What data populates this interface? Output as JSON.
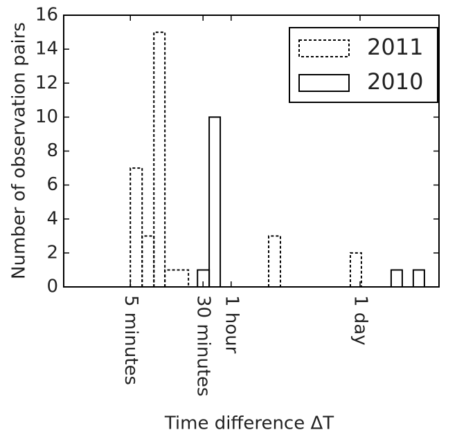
{
  "chart_data": {
    "type": "histogram",
    "x_label": "Time difference ΔT",
    "y_label": "Number of observation pairs",
    "xscale": "log",
    "xlim": [
      58,
      605000
    ],
    "ylim": [
      0,
      16
    ],
    "yticks": [
      0,
      2,
      4,
      6,
      8,
      10,
      12,
      14,
      16
    ],
    "xticks": [
      {
        "value": 300,
        "label": "5 minutes"
      },
      {
        "value": 1800,
        "label": "30 minutes"
      },
      {
        "value": 3600,
        "label": "1 hour"
      },
      {
        "value": 86400,
        "label": "1 day"
      }
    ],
    "legend": "upper right",
    "series": [
      {
        "name": "2011",
        "color": "#000000",
        "linestyle": "dashed",
        "bins": [
          300,
          401,
          536,
          703,
          1256,
          9080,
          12130,
          68000,
          89300
        ],
        "values": [
          7,
          3,
          15,
          1,
          0,
          3,
          0,
          2
        ]
      },
      {
        "name": "2010",
        "color": "#000000",
        "linestyle": "solid",
        "bins": [
          1570,
          2095,
          2753,
          186000,
          244500,
          321000,
          422000
        ],
        "values": [
          1,
          10,
          0,
          1,
          0,
          1
        ]
      }
    ]
  }
}
